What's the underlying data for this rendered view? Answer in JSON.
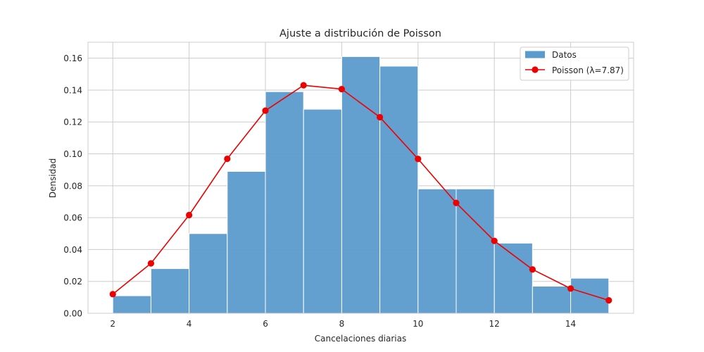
{
  "chart_data": {
    "type": "bar",
    "title": "Ajuste a distribución de Poisson",
    "xlabel": "Cancelaciones diarias",
    "ylabel": "Densidad",
    "xlim": [
      1.35,
      15.65
    ],
    "ylim": [
      0,
      0.17
    ],
    "xticks": [
      "2",
      "4",
      "6",
      "8",
      "10",
      "12",
      "14"
    ],
    "yticks": [
      "0.00",
      "0.02",
      "0.04",
      "0.06",
      "0.08",
      "0.10",
      "0.12",
      "0.14",
      "0.16"
    ],
    "grid": true,
    "legend_position": "top-right",
    "series": [
      {
        "name": "Datos",
        "type": "histogram",
        "color": "#5b9bcc",
        "bin_edges": [
          2,
          3,
          4,
          5,
          6,
          7,
          8,
          9,
          10,
          11,
          12,
          13,
          14,
          15
        ],
        "values": [
          0.011,
          0.028,
          0.05,
          0.089,
          0.139,
          0.128,
          0.161,
          0.155,
          0.078,
          0.078,
          0.044,
          0.017,
          0.022
        ]
      },
      {
        "name": "Poisson (λ=7.87)",
        "type": "line",
        "color": "#ee0000",
        "x": [
          2,
          3,
          4,
          5,
          6,
          7,
          8,
          9,
          10,
          11,
          12,
          13,
          14,
          15
        ],
        "y": [
          0.012,
          0.0313,
          0.0616,
          0.0969,
          0.1271,
          0.143,
          0.1406,
          0.123,
          0.0968,
          0.0692,
          0.0454,
          0.0275,
          0.0155,
          0.0081
        ]
      }
    ]
  }
}
